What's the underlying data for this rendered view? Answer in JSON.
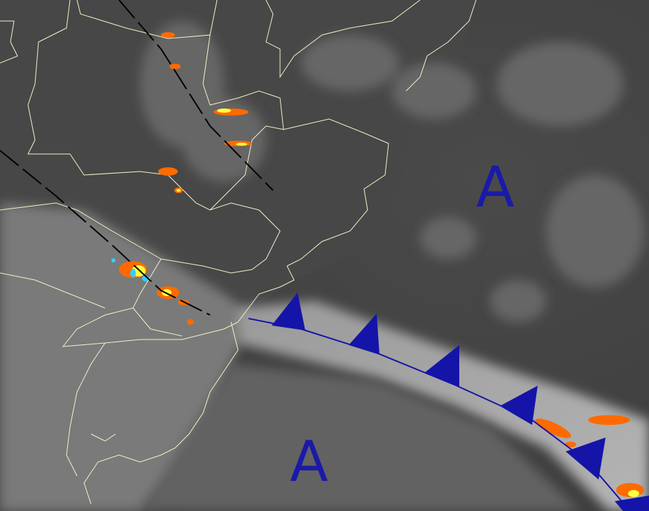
{
  "map": {
    "type": "satellite infrared image with synoptic analysis",
    "pressure_centers": [
      {
        "label": "A",
        "kind": "high-pressure"
      },
      {
        "label": "A",
        "kind": "high-pressure"
      }
    ],
    "fronts": [
      {
        "kind": "cold-front"
      }
    ],
    "troughs": [
      {
        "kind": "trough-line"
      },
      {
        "kind": "trough-line"
      }
    ],
    "colors": {
      "front": "#1414a8",
      "label": "#1a1aa8",
      "borders": "#f5f2c8",
      "trough": "#000000",
      "convection_orange": "#ff6a00",
      "convection_yellow": "#ffff40",
      "convection_cyan": "#30d0ff"
    }
  }
}
